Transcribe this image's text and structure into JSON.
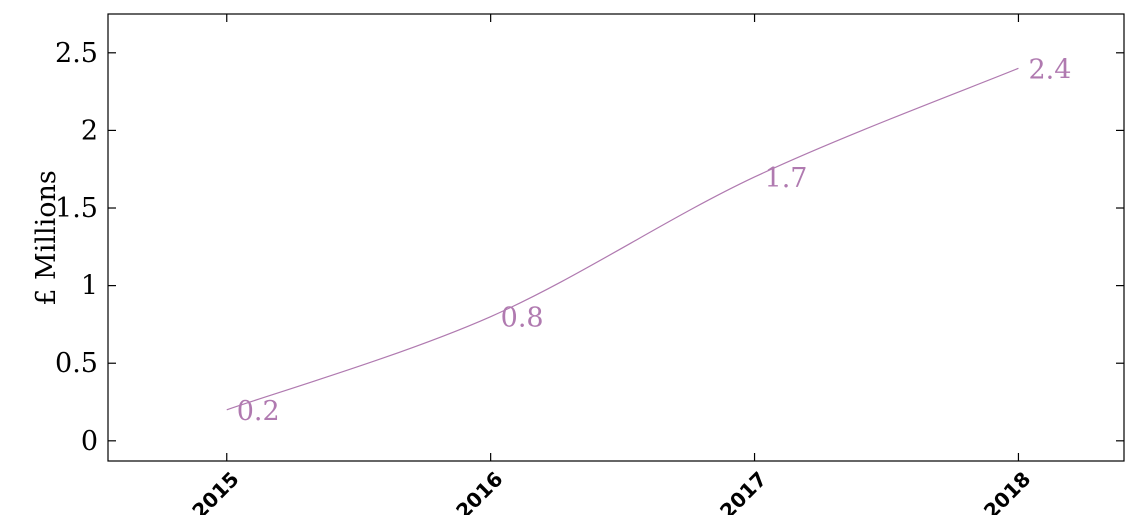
{
  "chart_data": {
    "type": "line",
    "title": "",
    "xlabel": "",
    "ylabel": "£ Millions",
    "x": [
      "2015",
      "2016",
      "2017",
      "2018"
    ],
    "series": [
      {
        "values": [
          0.2,
          0.8,
          1.7,
          2.4
        ]
      }
    ],
    "ylim": [
      -0.13,
      2.75
    ],
    "xlim": [
      2014.55,
      2018.4
    ],
    "yticks": [
      "0",
      "0.5",
      "1",
      "1.5",
      "2",
      "2.5"
    ],
    "data_labels": [
      "0.2",
      "0.8",
      "1.7",
      "2.4"
    ],
    "line_color": "#b07ab0",
    "grid": false,
    "smooth": true,
    "legend": "none"
  }
}
